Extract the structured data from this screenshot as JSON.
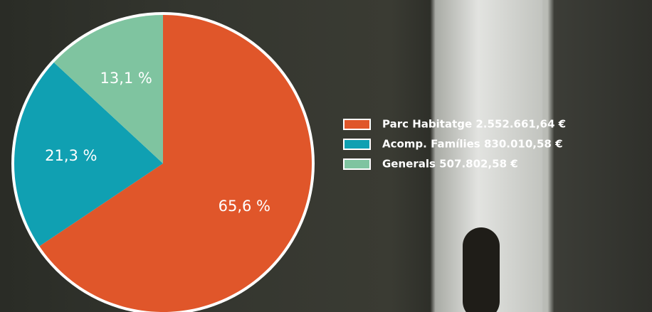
{
  "chart_data": {
    "type": "pie",
    "series": [
      {
        "name": "Parc Habitatge 2.552.661,64 €",
        "color": "#e0562a",
        "values": [
          65.6
        ],
        "value_labels": [
          "65,6 %"
        ]
      },
      {
        "name": "Acomp. Famílies 830.010,58 €",
        "color": "#10a0b2",
        "values": [
          21.3
        ],
        "value_labels": [
          "21,3 %"
        ]
      },
      {
        "name": "Generals 507.802,58 €",
        "color": "#7fc4a0",
        "values": [
          13.1
        ],
        "value_labels": [
          "13,1 %"
        ]
      }
    ],
    "legend": "right"
  }
}
